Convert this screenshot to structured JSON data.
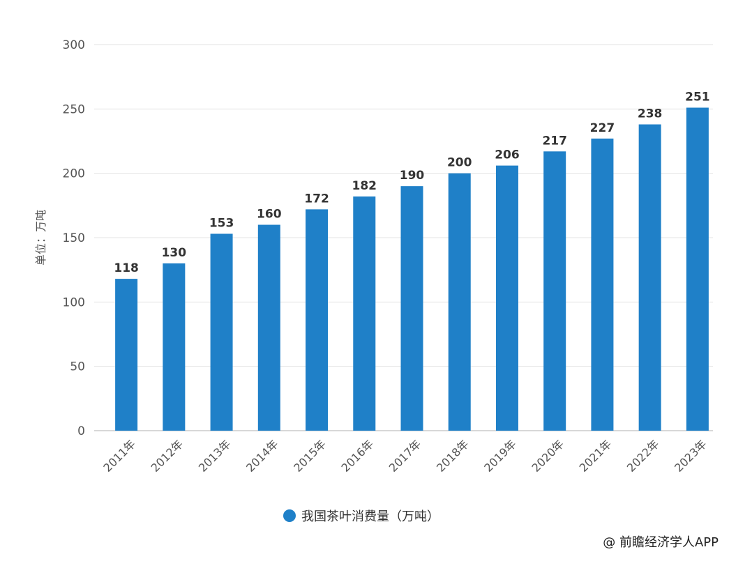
{
  "chart_data": {
    "type": "bar",
    "categories": [
      "2011年",
      "2012年",
      "2013年",
      "2014年",
      "2015年",
      "2016年",
      "2017年",
      "2018年",
      "2019年",
      "2020年",
      "2021年",
      "2022年",
      "2023年"
    ],
    "series": [
      {
        "name": "我国茶叶消费量（万吨）",
        "values": [
          118,
          130,
          153,
          160,
          172,
          182,
          190,
          200,
          206,
          217,
          227,
          238,
          251
        ]
      }
    ],
    "ylabel": "单位：万吨",
    "ylim": [
      0,
      300
    ],
    "yticks": [
      0,
      50,
      100,
      150,
      200,
      250,
      300
    ],
    "grid": true,
    "legend_position": "bottom-center"
  },
  "colors": {
    "bar": "#1f80c8",
    "grid": "#e3e3e3",
    "axis_text": "#555555",
    "label_text": "#333333"
  },
  "legend": {
    "label": "我国茶叶消费量（万吨）"
  },
  "source": {
    "text": "@ 前瞻经济学人APP"
  }
}
